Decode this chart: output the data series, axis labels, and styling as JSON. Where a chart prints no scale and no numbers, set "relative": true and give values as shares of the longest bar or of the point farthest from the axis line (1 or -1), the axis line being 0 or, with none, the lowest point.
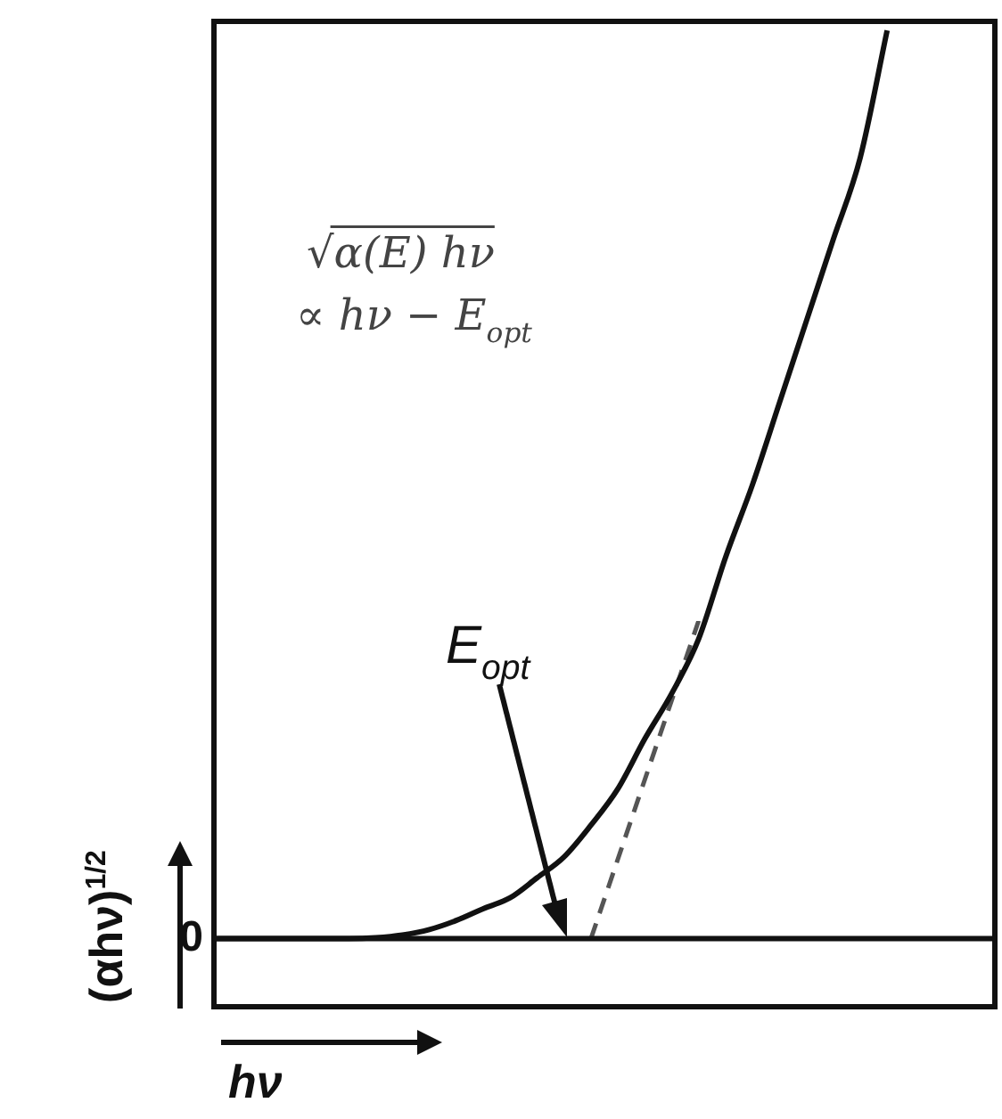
{
  "chart_data": {
    "type": "line",
    "relative": true,
    "xlabel": "hν",
    "ylabel": "(αhν)$^{1/2}$",
    "legend": false,
    "categories": [
      null,
      null,
      null,
      null,
      null,
      null,
      null,
      null,
      null,
      null,
      null,
      null,
      null,
      null,
      null,
      null,
      null,
      null,
      null,
      null,
      null,
      null,
      null,
      null,
      null,
      null,
      null,
      null,
      null,
      null
    ],
    "series": [
      {
        "color": "#111111",
        "line_style": "solid",
        "values": [
          0,
          0,
          0,
          0,
          0,
          0,
          0.001,
          0.004,
          0.01,
          0.02,
          0.033,
          0.045,
          0.067,
          0.09,
          0.125,
          0.165,
          0.22,
          0.27,
          0.33,
          0.42,
          0.5,
          0.59,
          0.68,
          0.77,
          0.86,
          1,
          null,
          null,
          null,
          null
        ]
      },
      {
        "color": "#555555",
        "line_style": "dashed",
        "values": [
          null,
          null,
          null,
          null,
          null,
          null,
          null,
          null,
          null,
          null,
          null,
          null,
          null,
          null,
          0,
          null,
          null,
          null,
          0.35,
          null,
          null,
          null,
          null,
          null,
          null,
          null,
          null,
          null,
          null,
          null
        ]
      }
    ],
    "annotations": [
      "√α(E) hν",
      "∝ hν − E$_{opt}$",
      "E$_{opt}$",
      "0"
    ]
  }
}
